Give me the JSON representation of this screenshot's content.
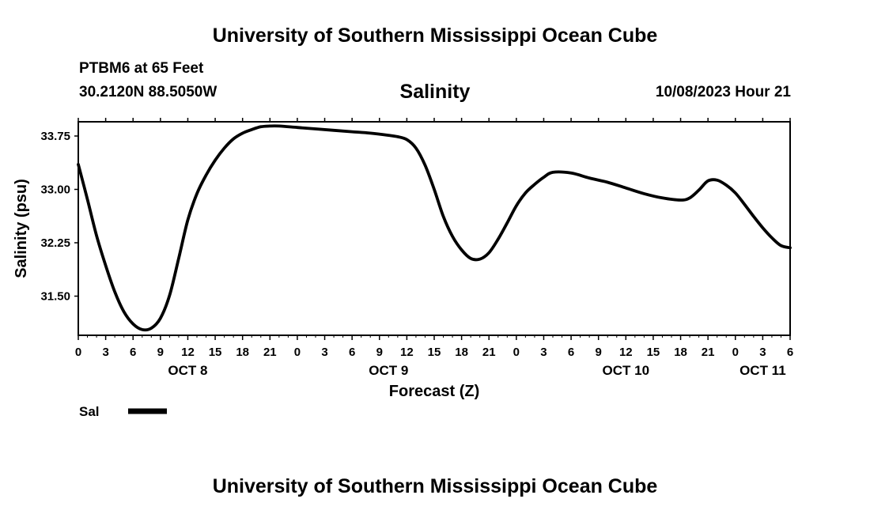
{
  "header": {
    "title": "University of Southern Mississippi Ocean Cube",
    "station": "PTBM6 at 65 Feet",
    "coordinates": "30.2120N  88.5050W",
    "chart_title": "Salinity",
    "valid_time": "10/08/2023 Hour 21"
  },
  "footer": {
    "title": "University of Southern Mississippi Ocean Cube"
  },
  "legend": {
    "label": "Sal",
    "color": "#000000"
  },
  "colors": {
    "line": "#000000",
    "grid": "#c8c8c8",
    "background": "#ffffff"
  },
  "chart_data": {
    "type": "line",
    "title": "Salinity",
    "xlabel": "Forecast (Z)",
    "ylabel": "Salinity (psu)",
    "x_unit": "hours from 10/08/2023 00Z",
    "xlim": [
      0,
      78
    ],
    "ylim": [
      30.95,
      33.95
    ],
    "grid": true,
    "legend_position": "bottom-left",
    "x_ticks": [
      {
        "value": 0,
        "label": "0"
      },
      {
        "value": 3,
        "label": "3"
      },
      {
        "value": 6,
        "label": "6"
      },
      {
        "value": 9,
        "label": "9"
      },
      {
        "value": 12,
        "label": "12"
      },
      {
        "value": 15,
        "label": "15"
      },
      {
        "value": 18,
        "label": "18"
      },
      {
        "value": 21,
        "label": "21"
      },
      {
        "value": 24,
        "label": "0"
      },
      {
        "value": 27,
        "label": "3"
      },
      {
        "value": 30,
        "label": "6"
      },
      {
        "value": 33,
        "label": "9"
      },
      {
        "value": 36,
        "label": "12"
      },
      {
        "value": 39,
        "label": "15"
      },
      {
        "value": 42,
        "label": "18"
      },
      {
        "value": 45,
        "label": "21"
      },
      {
        "value": 48,
        "label": "0"
      },
      {
        "value": 51,
        "label": "3"
      },
      {
        "value": 54,
        "label": "6"
      },
      {
        "value": 57,
        "label": "9"
      },
      {
        "value": 60,
        "label": "12"
      },
      {
        "value": 63,
        "label": "15"
      },
      {
        "value": 66,
        "label": "18"
      },
      {
        "value": 69,
        "label": "21"
      },
      {
        "value": 72,
        "label": "0"
      },
      {
        "value": 75,
        "label": "3"
      },
      {
        "value": 78,
        "label": "6"
      }
    ],
    "day_labels": [
      {
        "value": 12,
        "label": "OCT 8"
      },
      {
        "value": 34,
        "label": "OCT 9"
      },
      {
        "value": 60,
        "label": "OCT 10"
      },
      {
        "value": 75,
        "label": "OCT 11"
      }
    ],
    "y_ticks": [
      {
        "value": 31.5,
        "label": "31.50"
      },
      {
        "value": 32.25,
        "label": "32.25"
      },
      {
        "value": 33.0,
        "label": "33.00"
      },
      {
        "value": 33.75,
        "label": "33.75"
      }
    ],
    "series": [
      {
        "name": "Sal",
        "color": "#000000",
        "x": [
          0,
          1,
          2,
          3,
          4,
          5,
          6,
          7,
          8,
          9,
          10,
          11,
          12,
          13,
          14,
          15,
          16,
          17,
          18,
          19,
          20,
          21,
          22,
          24,
          26,
          28,
          30,
          32,
          34,
          35,
          36,
          37,
          38,
          39,
          40,
          41,
          42,
          43,
          44,
          45,
          46,
          47,
          48,
          49,
          50,
          51,
          52,
          54,
          56,
          58,
          60,
          62,
          64,
          66,
          67,
          68,
          69,
          70,
          71,
          72,
          73,
          74,
          75,
          76,
          77,
          78
        ],
        "y": [
          33.35,
          32.86,
          32.35,
          31.93,
          31.56,
          31.28,
          31.11,
          31.03,
          31.05,
          31.19,
          31.51,
          32.03,
          32.57,
          32.94,
          33.2,
          33.41,
          33.58,
          33.71,
          33.79,
          33.84,
          33.88,
          33.89,
          33.89,
          33.87,
          33.85,
          33.83,
          33.81,
          33.79,
          33.76,
          33.74,
          33.7,
          33.58,
          33.34,
          33.0,
          32.62,
          32.34,
          32.15,
          32.03,
          32.02,
          32.11,
          32.3,
          32.53,
          32.77,
          32.95,
          33.07,
          33.17,
          33.24,
          33.23,
          33.16,
          33.1,
          33.02,
          32.94,
          32.88,
          32.85,
          32.88,
          32.99,
          33.12,
          33.13,
          33.06,
          32.95,
          32.79,
          32.62,
          32.46,
          32.32,
          32.21,
          32.18
        ]
      }
    ]
  }
}
